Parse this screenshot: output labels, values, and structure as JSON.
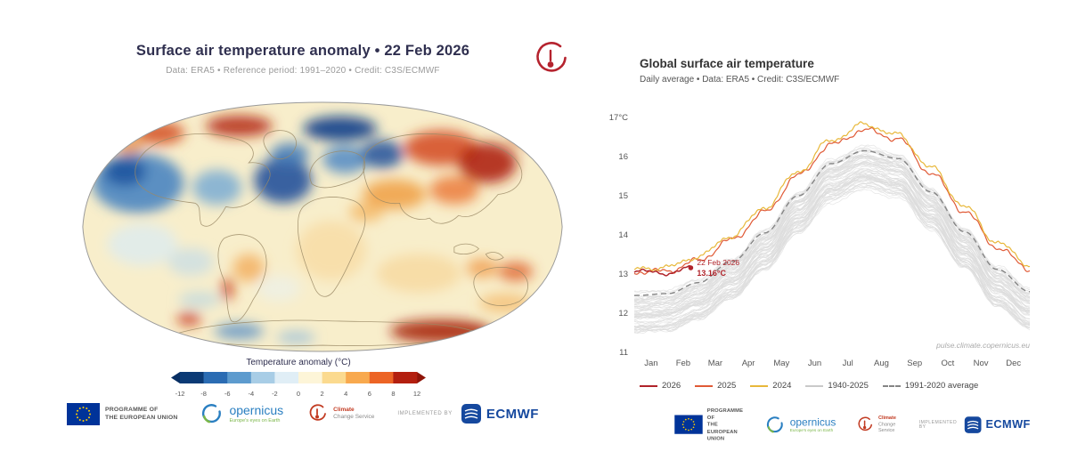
{
  "chart_data": [
    {
      "type": "heatmap",
      "subtype": "world-temperature-anomaly-map",
      "title": "Surface air temperature anomaly • 22 Feb 2026",
      "subtitle": "Data: ERA5 • Reference period: 1991–2020 • Credit: C3S/ECMWF",
      "colorbar": {
        "label": "Temperature anomaly (°C)",
        "ticks": [
          "-12",
          "-8",
          "-6",
          "-4",
          "-2",
          "0",
          "2",
          "4",
          "6",
          "8",
          "12"
        ],
        "colors": [
          "#0b3a75",
          "#2b6cb3",
          "#5d9bce",
          "#a8cde6",
          "#e0eef6",
          "#fdf5d8",
          "#fbda8f",
          "#f8a94e",
          "#ec6425",
          "#b31f0f"
        ],
        "arrow_left": "#082f63",
        "arrow_right": "#8f1408"
      },
      "map": {
        "base_color": "#f8eecb",
        "outline_color": "#9a9a9a",
        "coast_color": "#9b8a66",
        "regions": [
          {
            "name": "north-pacific-cold",
            "x": 70,
            "y": 95,
            "rx": 52,
            "ry": 34,
            "c": "#3e7fc1",
            "o": 0.85
          },
          {
            "name": "north-pacific-core-cold",
            "x": 55,
            "y": 82,
            "rx": 24,
            "ry": 16,
            "c": "#1d55a0",
            "o": 0.9
          },
          {
            "name": "bering-warm",
            "x": 95,
            "y": 38,
            "rx": 28,
            "ry": 13,
            "c": "#d34e1d",
            "o": 0.85
          },
          {
            "name": "alaska-warm",
            "x": 60,
            "y": 52,
            "rx": 16,
            "ry": 9,
            "c": "#e98a33",
            "o": 0.8
          },
          {
            "name": "arctic-canada-warm",
            "x": 185,
            "y": 30,
            "rx": 38,
            "ry": 12,
            "c": "#b3260f",
            "o": 0.85
          },
          {
            "name": "east-north-america-cold",
            "x": 160,
            "y": 100,
            "rx": 28,
            "ry": 20,
            "c": "#6aa3d4",
            "o": 0.75
          },
          {
            "name": "north-atlantic-cold",
            "x": 235,
            "y": 92,
            "rx": 33,
            "ry": 26,
            "c": "#1d4f9b",
            "o": 0.88
          },
          {
            "name": "greenland-cold",
            "x": 243,
            "y": 62,
            "rx": 22,
            "ry": 13,
            "c": "#3a74b8",
            "o": 0.8
          },
          {
            "name": "arctic-europe-cold",
            "x": 300,
            "y": 33,
            "rx": 42,
            "ry": 14,
            "c": "#123f8a",
            "o": 0.9
          },
          {
            "name": "scandinavia-cold",
            "x": 306,
            "y": 68,
            "rx": 26,
            "ry": 16,
            "c": "#4683c4",
            "o": 0.8
          },
          {
            "name": "west-russia-cold",
            "x": 348,
            "y": 62,
            "rx": 24,
            "ry": 16,
            "c": "#1d4f9b",
            "o": 0.85
          },
          {
            "name": "central-siberia-warm",
            "x": 415,
            "y": 55,
            "rx": 42,
            "ry": 20,
            "c": "#d4491c",
            "o": 0.85
          },
          {
            "name": "east-siberia-warm",
            "x": 468,
            "y": 72,
            "rx": 33,
            "ry": 23,
            "c": "#ad1b0d",
            "o": 0.88
          },
          {
            "name": "chukotka-warm",
            "x": 520,
            "y": 38,
            "rx": 26,
            "ry": 13,
            "c": "#c52f12",
            "o": 0.85
          },
          {
            "name": "central-asia-warm",
            "x": 362,
            "y": 108,
            "rx": 36,
            "ry": 17,
            "c": "#ef9a3c",
            "o": 0.8
          },
          {
            "name": "middle-east-warm",
            "x": 330,
            "y": 128,
            "rx": 20,
            "ry": 11,
            "c": "#f3ae54",
            "o": 0.7
          },
          {
            "name": "china-warm",
            "x": 430,
            "y": 103,
            "rx": 28,
            "ry": 16,
            "c": "#e96e27",
            "o": 0.75
          },
          {
            "name": "africa-mild-warm",
            "x": 290,
            "y": 172,
            "rx": 40,
            "ry": 34,
            "c": "#f7d391",
            "o": 0.55
          },
          {
            "name": "south-america-warm",
            "x": 196,
            "y": 192,
            "rx": 18,
            "ry": 16,
            "c": "#f2a44b",
            "o": 0.7
          },
          {
            "name": "chile-coast-warm",
            "x": 172,
            "y": 216,
            "rx": 7,
            "ry": 13,
            "c": "#c93a14",
            "o": 0.8
          },
          {
            "name": "indian-ocean-mild",
            "x": 390,
            "y": 198,
            "rx": 48,
            "ry": 22,
            "c": "#f6c87c",
            "o": 0.45
          },
          {
            "name": "australia-warm",
            "x": 500,
            "y": 196,
            "rx": 20,
            "ry": 11,
            "c": "#dd5a1f",
            "o": 0.75
          },
          {
            "name": "nw-australia-warm",
            "x": 462,
            "y": 192,
            "rx": 18,
            "ry": 11,
            "c": "#f0913a",
            "o": 0.7
          },
          {
            "name": "tasman-warm",
            "x": 488,
            "y": 232,
            "rx": 30,
            "ry": 11,
            "c": "#f3a84d",
            "o": 0.55
          },
          {
            "name": "antarctica-east-warm",
            "x": 415,
            "y": 264,
            "rx": 58,
            "ry": 13,
            "c": "#a21505",
            "o": 0.85
          },
          {
            "name": "antarctica-west-cold",
            "x": 185,
            "y": 264,
            "rx": 28,
            "ry": 9,
            "c": "#4c88c5",
            "o": 0.75
          },
          {
            "name": "ross-sea-cold",
            "x": 250,
            "y": 271,
            "rx": 22,
            "ry": 7,
            "c": "#86b6dd",
            "o": 0.65
          },
          {
            "name": "amundsen-warm",
            "x": 128,
            "y": 250,
            "rx": 14,
            "ry": 8,
            "c": "#c52f12",
            "o": 0.75
          },
          {
            "name": "southern-ocean-cool",
            "x": 140,
            "y": 228,
            "rx": 24,
            "ry": 9,
            "c": "#a9cfe8",
            "o": 0.55
          },
          {
            "name": "equatorial-pacific-cool",
            "x": 75,
            "y": 165,
            "rx": 40,
            "ry": 24,
            "c": "#d9ebf5",
            "o": 0.7
          },
          {
            "name": "humboldt-cool",
            "x": 130,
            "y": 185,
            "rx": 26,
            "ry": 16,
            "c": "#bcd9ec",
            "o": 0.6
          },
          {
            "name": "south-atlantic-cool",
            "x": 230,
            "y": 215,
            "rx": 25,
            "ry": 15,
            "c": "#e8f2f8",
            "o": 0.5
          }
        ]
      }
    },
    {
      "type": "line",
      "title": "Global surface air temperature",
      "subtitle": "Daily average • Data: ERA5 • Credit: C3S/ECMWF",
      "watermark": "pulse.climate.copernicus.eu",
      "ylim": [
        11,
        17
      ],
      "y_ticks": [
        17,
        16,
        15,
        14,
        13,
        12,
        11
      ],
      "y_tick_unit": "°C",
      "x_categories": [
        "Jan",
        "Feb",
        "Mar",
        "Apr",
        "May",
        "Jun",
        "Jul",
        "Aug",
        "Sep",
        "Oct",
        "Nov",
        "Dec"
      ],
      "control_days": [
        0,
        31,
        59,
        90,
        120,
        151,
        181,
        212,
        243,
        273,
        304,
        334,
        364
      ],
      "series": [
        {
          "name": "1991–2020 average",
          "style": "dashed",
          "color": "#858585",
          "monthly": [
            12.45,
            12.5,
            12.78,
            13.32,
            14.05,
            15.0,
            15.82,
            16.15,
            15.95,
            15.1,
            14.08,
            13.12,
            12.55
          ]
        },
        {
          "name": "2024",
          "color": "#e8b83a",
          "monthly": [
            13.12,
            13.18,
            13.45,
            13.98,
            14.7,
            15.62,
            16.42,
            16.82,
            16.55,
            15.72,
            14.72,
            13.8,
            13.25
          ]
        },
        {
          "name": "2025",
          "color": "#e05a36",
          "monthly": [
            13.05,
            13.08,
            13.35,
            13.88,
            14.58,
            15.52,
            16.3,
            16.68,
            16.45,
            15.58,
            14.6,
            13.68,
            13.12
          ]
        },
        {
          "name": "2026",
          "color": "#b0232a",
          "partial_days": [
            0,
            31,
            53
          ],
          "monthly": [
            13.08,
            13.02,
            13.16
          ],
          "end_value": 13.16
        }
      ],
      "background_ensemble": {
        "name": "1940–2025",
        "color": "#dcdcdc",
        "count": 70,
        "offset_range": [
          -0.95,
          0.05
        ]
      },
      "legend": [
        {
          "label": "2026",
          "color": "#b0232a"
        },
        {
          "label": "2025",
          "color": "#e05a36"
        },
        {
          "label": "2024",
          "color": "#e8b83a"
        },
        {
          "label": "1940-2025",
          "color": "#c9c9c9"
        },
        {
          "label": "1991-2020 average",
          "color": "#858585",
          "dashed": true
        }
      ],
      "annotation": {
        "date": "22 Feb 2026",
        "value": "13.16°C",
        "day": 52,
        "y": 13.16
      }
    }
  ],
  "logos": {
    "eu": {
      "line1": "PROGRAMME OF",
      "line2": "THE EUROPEAN UNION"
    },
    "copernicus": {
      "name": "opernicus",
      "tagline": "Europe's eyes on Earth"
    },
    "c3s": {
      "line1": "Climate",
      "line2": "Change Service"
    },
    "implemented_by": "IMPLEMENTED BY",
    "ecmwf": "ECMWF"
  }
}
